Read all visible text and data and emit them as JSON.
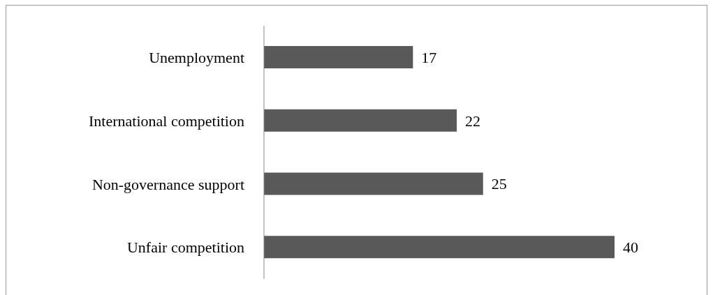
{
  "chart_data": {
    "type": "bar",
    "orientation": "horizontal",
    "categories": [
      "Unemployment",
      "International competition",
      "Non-governance support",
      "Unfair competition"
    ],
    "values": [
      17,
      22,
      25,
      40
    ],
    "color": "#595959",
    "data_labels": true
  }
}
